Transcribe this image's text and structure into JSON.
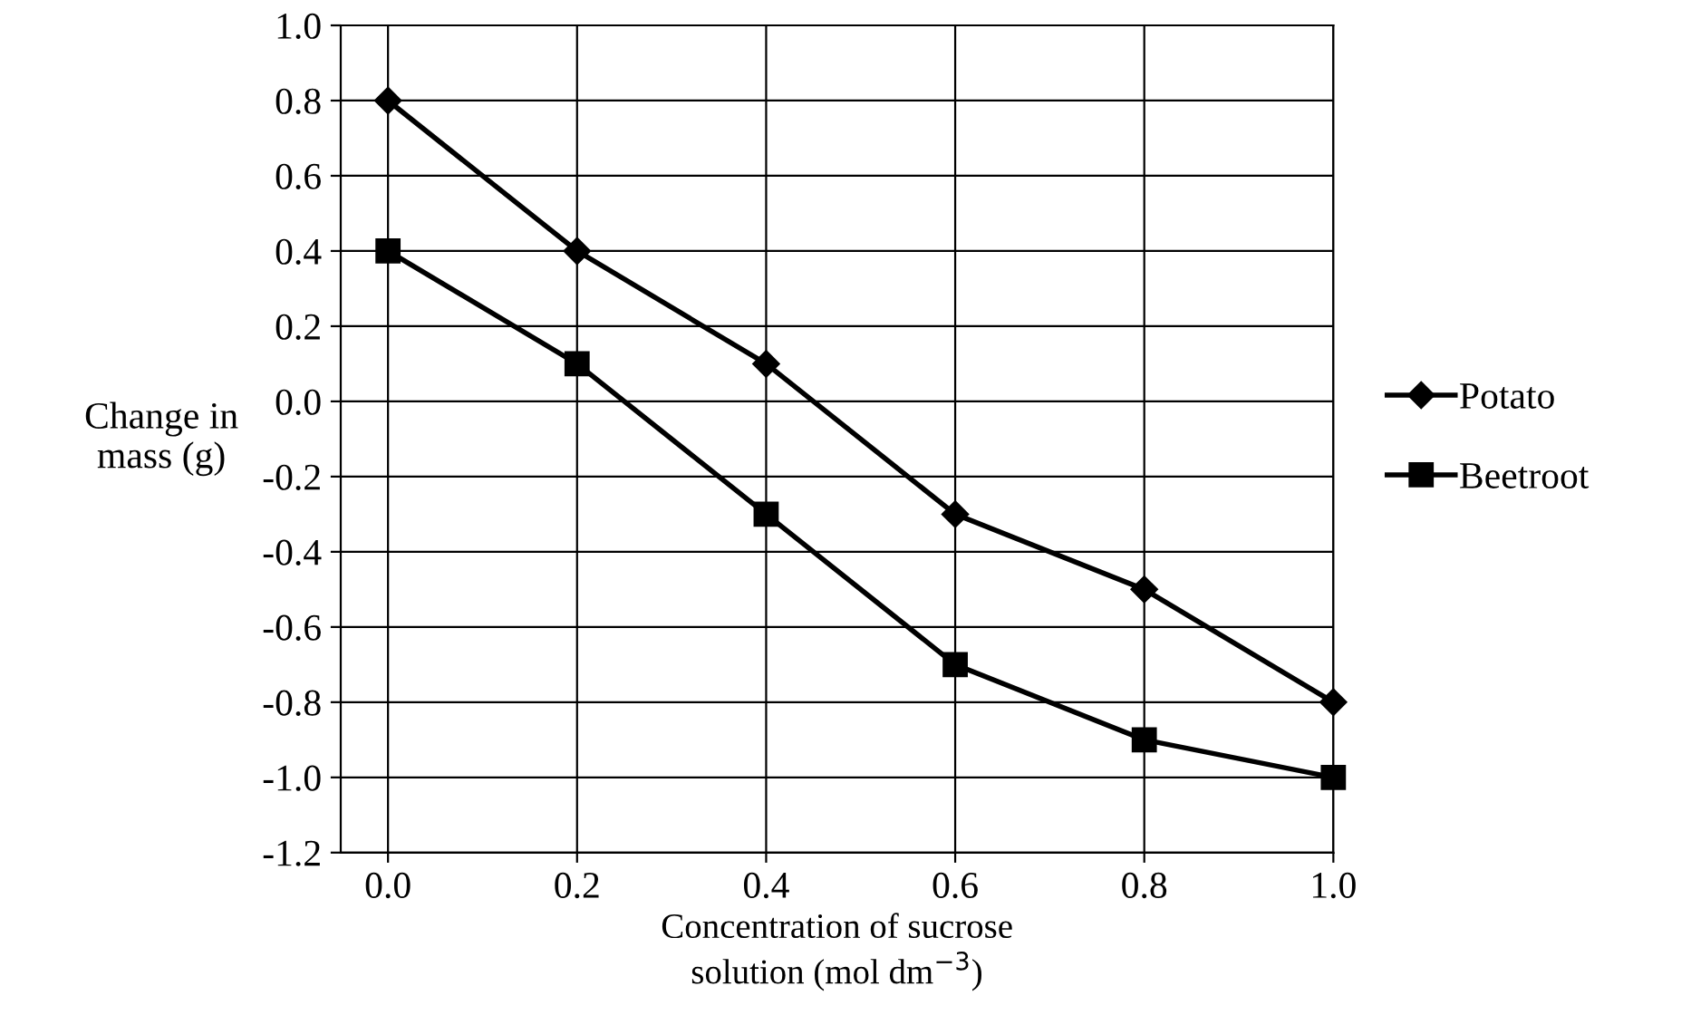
{
  "chart_data": {
    "type": "line",
    "xlabel": "Concentration of sucrose\nsolution (mol dm$^{−3}$)",
    "ylabel": "Change in\nmass (g)",
    "x": [
      0.0,
      0.2,
      0.4,
      0.6,
      0.8,
      1.0
    ],
    "series": [
      {
        "name": "Potato",
        "color": "#000000",
        "marker": "diamond",
        "values": [
          0.8,
          0.4,
          0.1,
          -0.3,
          -0.5,
          -0.8
        ]
      },
      {
        "name": "Beetroot",
        "color": "#000000",
        "marker": "square",
        "values": [
          0.4,
          0.1,
          -0.3,
          -0.7,
          -0.9,
          -1.0
        ]
      }
    ],
    "xlim": [
      -0.05,
      1.0
    ],
    "ylim": [
      -1.2,
      1.0
    ],
    "xticks": [
      {
        "value": 0,
        "label": "0.0"
      },
      0.2,
      0.4,
      0.6,
      0.8,
      {
        "value": 1,
        "label": "1.0"
      }
    ],
    "yticks": [
      -1.2,
      {
        "value": -1,
        "label": "-1.0"
      },
      -0.8,
      -0.6,
      -0.4,
      -0.2,
      {
        "value": 0,
        "label": "0.0"
      },
      0.2,
      0.4,
      0.6,
      0.8,
      {
        "value": 1,
        "label": "1.0"
      }
    ],
    "grid": true,
    "legend": "right",
    "line_style": "solid"
  }
}
